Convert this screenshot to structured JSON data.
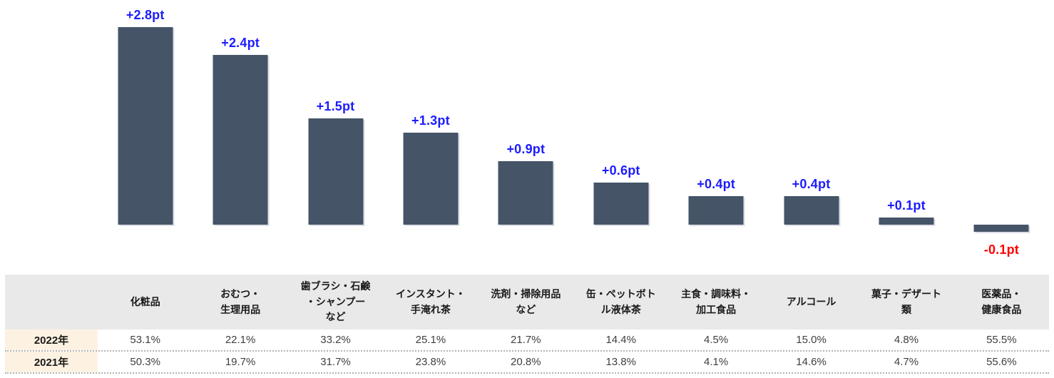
{
  "chart_data": {
    "type": "bar",
    "title": "",
    "categories": [
      "化粧品",
      "おむつ・生理用品",
      "歯ブラシ・石鹸・シャンプーなど",
      "インスタント・手淹れ茶",
      "洗剤・掃除用品など",
      "缶・ペットボトル液体茶",
      "主食・調味料・加工食品",
      "アルコール",
      "菓子・デザート類",
      "医薬品・健康食品"
    ],
    "values": [
      2.8,
      2.4,
      1.5,
      1.3,
      0.9,
      0.6,
      0.4,
      0.4,
      0.1,
      -0.1
    ],
    "value_labels": [
      "+2.8pt",
      "+2.4pt",
      "+1.5pt",
      "+1.3pt",
      "+0.9pt",
      "+0.6pt",
      "+0.4pt",
      "+0.4pt",
      "+0.1pt",
      "-0.1pt"
    ],
    "unit": "pt",
    "ylim": [
      -0.3,
      3.0
    ],
    "grid": false,
    "legend": "none",
    "bar_color": "#455467",
    "positive_label_color": "#1c1cff",
    "negative_label_color": "#ff0000"
  },
  "table": {
    "header_bg": "#e9e9e9",
    "row_label_bg": "#fdf2e1",
    "empty_corner_label": "",
    "column_headers": [
      "化粧品",
      "おむつ・\n生理用品",
      "歯ブラシ・石鹸\n・シャンプー\nなど",
      "インスタント・\n手淹れ茶",
      "洗剤・掃除用品\nなど",
      "缶・ペットボト\nル液体茶",
      "主食・調味料・\n加工食品",
      "アルコール",
      "菓子・デザート\n類",
      "医薬品・\n健康食品"
    ],
    "rows": [
      {
        "label": "2022年",
        "values": [
          "53.1%",
          "22.1%",
          "33.2%",
          "25.1%",
          "21.7%",
          "14.4%",
          "4.5%",
          "15.0%",
          "4.8%",
          "55.5%"
        ]
      },
      {
        "label": "2021年",
        "values": [
          "50.3%",
          "19.7%",
          "31.7%",
          "23.8%",
          "20.8%",
          "13.8%",
          "4.1%",
          "14.6%",
          "4.7%",
          "55.6%"
        ]
      }
    ]
  }
}
